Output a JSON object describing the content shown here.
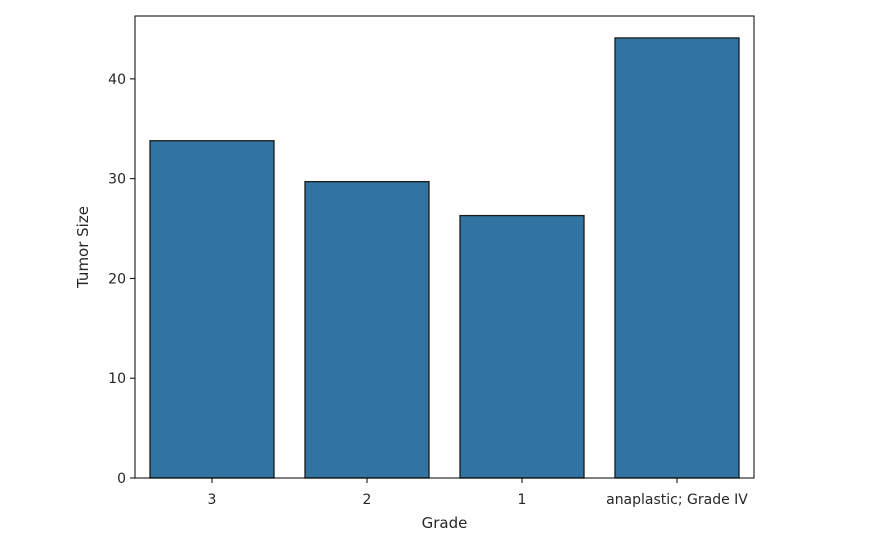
{
  "chart_data": {
    "type": "bar",
    "title": "",
    "xlabel": "Grade",
    "ylabel": "Tumor Size",
    "categories": [
      "3",
      "2",
      "1",
      "anaplastic; Grade IV"
    ],
    "values": [
      33.8,
      29.7,
      26.3,
      44.1
    ],
    "ylim": [
      0,
      46.3
    ],
    "yticks": [
      0,
      10,
      20,
      30,
      40
    ],
    "ytick_labels": [
      "0",
      "10",
      "20",
      "30",
      "40"
    ],
    "grid": false,
    "legend": "none",
    "bar_color": "#3274a1",
    "edge_color": "#1a1a1a"
  }
}
